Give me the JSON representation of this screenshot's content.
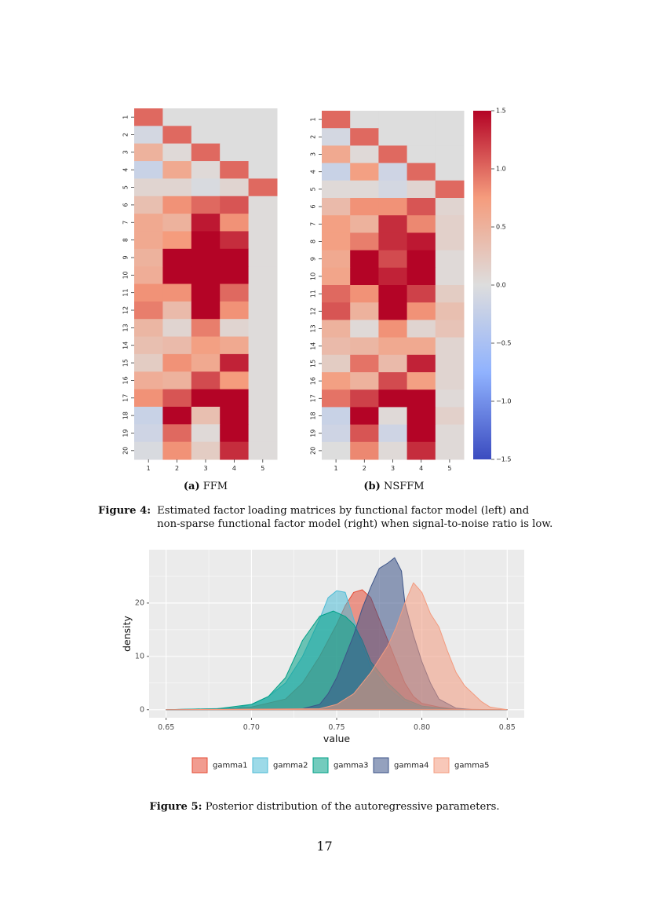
{
  "figure4": {
    "heatmaps": [
      {
        "label": "(a)",
        "title": "FFM",
        "rows": [
          "1",
          "2",
          "3",
          "4",
          "5",
          "6",
          "7",
          "8",
          "9",
          "10",
          "11",
          "12",
          "13",
          "14",
          "15",
          "16",
          "17",
          "18",
          "19",
          "20"
        ],
        "cols": [
          "1",
          "2",
          "3",
          "4",
          "5"
        ],
        "values": [
          [
            1.0,
            0,
            0,
            0,
            0
          ],
          [
            -0.1,
            1.0,
            0,
            0,
            0
          ],
          [
            0.5,
            0.05,
            1.0,
            0,
            0
          ],
          [
            -0.2,
            0.6,
            0.05,
            1.0,
            0
          ],
          [
            0.1,
            0.1,
            -0.05,
            0.1,
            1.0
          ],
          [
            0.35,
            0.8,
            1.0,
            1.1,
            0.02
          ],
          [
            0.6,
            0.5,
            1.4,
            0.8,
            0.02
          ],
          [
            0.6,
            0.75,
            1.5,
            1.3,
            0.02
          ],
          [
            0.5,
            1.5,
            1.5,
            1.5,
            0.02
          ],
          [
            0.55,
            1.5,
            1.5,
            1.5,
            0.02
          ],
          [
            0.8,
            0.8,
            1.5,
            1.0,
            0.02
          ],
          [
            0.9,
            0.4,
            1.5,
            0.8,
            0.02
          ],
          [
            0.45,
            0.1,
            0.9,
            0.1,
            0.02
          ],
          [
            0.35,
            0.4,
            0.7,
            0.6,
            0.02
          ],
          [
            0.2,
            0.8,
            0.6,
            1.35,
            0.02
          ],
          [
            0.55,
            0.5,
            1.15,
            0.75,
            0.02
          ],
          [
            0.8,
            1.1,
            1.5,
            1.5,
            0.02
          ],
          [
            -0.2,
            1.5,
            0.35,
            1.5,
            0.02
          ],
          [
            -0.15,
            1.0,
            0.05,
            1.5,
            0.02
          ],
          [
            -0.05,
            0.8,
            0.2,
            1.3,
            0.02
          ]
        ]
      },
      {
        "label": "(b)",
        "title": "NSFFM",
        "rows": [
          "1",
          "2",
          "3",
          "4",
          "5",
          "6",
          "7",
          "8",
          "9",
          "10",
          "11",
          "12",
          "13",
          "14",
          "15",
          "16",
          "17",
          "18",
          "19",
          "20"
        ],
        "cols": [
          "1",
          "2",
          "3",
          "4",
          "5"
        ],
        "values": [
          [
            1.0,
            0,
            0,
            0,
            0
          ],
          [
            -0.1,
            1.0,
            0,
            0,
            0
          ],
          [
            0.6,
            0.05,
            1.0,
            0,
            0
          ],
          [
            -0.2,
            0.7,
            -0.15,
            1.0,
            0
          ],
          [
            0.05,
            0.05,
            -0.1,
            0.1,
            1.0
          ],
          [
            0.4,
            0.8,
            0.8,
            1.1,
            0.1
          ],
          [
            0.7,
            0.5,
            1.3,
            0.85,
            0.15
          ],
          [
            0.7,
            0.9,
            1.3,
            1.4,
            0.15
          ],
          [
            0.6,
            1.5,
            1.15,
            1.5,
            0.05
          ],
          [
            0.65,
            1.5,
            1.35,
            1.5,
            0.05
          ],
          [
            1.0,
            0.8,
            1.5,
            1.2,
            0.2
          ],
          [
            1.1,
            0.5,
            1.5,
            0.8,
            0.35
          ],
          [
            0.5,
            0.05,
            0.8,
            0.1,
            0.3
          ],
          [
            0.4,
            0.45,
            0.6,
            0.6,
            0.1
          ],
          [
            0.2,
            0.95,
            0.4,
            1.35,
            0.1
          ],
          [
            0.7,
            0.5,
            1.15,
            0.7,
            0.1
          ],
          [
            0.95,
            1.2,
            1.5,
            1.5,
            0.05
          ],
          [
            -0.2,
            1.5,
            0.05,
            1.5,
            0.15
          ],
          [
            -0.15,
            1.1,
            -0.15,
            1.5,
            0.05
          ],
          [
            0,
            0.85,
            0.05,
            1.3,
            0.05
          ]
        ]
      }
    ],
    "colorbar": {
      "range": [
        -1.5,
        1.5
      ],
      "ticks": [
        "1.5",
        "1.0",
        "0.5",
        "0.0",
        "−0.5",
        "−1.0",
        "−1.5"
      ],
      "tick_values": [
        1.5,
        1.0,
        0.5,
        0.0,
        -0.5,
        -1.0,
        -1.5
      ]
    },
    "caption_label": "Figure 4:",
    "caption_text": "Estimated factor loading matrices by functional factor model (left) and non-sparse functional factor model (right) when signal-to-noise ratio is low."
  },
  "chart_data": {
    "type": "area",
    "xlabel": "value",
    "ylabel": "density",
    "xlim": [
      0.64,
      0.86
    ],
    "ylim": [
      -1.5,
      30
    ],
    "xticks": [
      0.65,
      0.7,
      0.75,
      0.8,
      0.85
    ],
    "xtick_labels": [
      "0.65",
      "0.70",
      "0.75",
      "0.80",
      "0.85"
    ],
    "yticks": [
      0,
      10,
      20
    ],
    "ytick_labels": [
      "0",
      "10",
      "20"
    ],
    "grid": true,
    "legend_position": "bottom",
    "series": [
      {
        "name": "gamma1",
        "color": "#E64B35",
        "points": [
          [
            0.65,
            0
          ],
          [
            0.68,
            0.2
          ],
          [
            0.7,
            0.5
          ],
          [
            0.72,
            2
          ],
          [
            0.73,
            5
          ],
          [
            0.74,
            10
          ],
          [
            0.75,
            16
          ],
          [
            0.755,
            19.5
          ],
          [
            0.76,
            22
          ],
          [
            0.765,
            22.5
          ],
          [
            0.77,
            21
          ],
          [
            0.775,
            17
          ],
          [
            0.78,
            13
          ],
          [
            0.785,
            9
          ],
          [
            0.79,
            5
          ],
          [
            0.795,
            2.5
          ],
          [
            0.8,
            1.2
          ],
          [
            0.81,
            0.5
          ],
          [
            0.82,
            0.1
          ],
          [
            0.85,
            0
          ]
        ]
      },
      {
        "name": "gamma2",
        "color": "#4DBBD5",
        "points": [
          [
            0.65,
            0
          ],
          [
            0.69,
            0.3
          ],
          [
            0.7,
            1
          ],
          [
            0.71,
            2.5
          ],
          [
            0.72,
            5
          ],
          [
            0.73,
            10
          ],
          [
            0.74,
            17
          ],
          [
            0.745,
            21
          ],
          [
            0.75,
            22.3
          ],
          [
            0.755,
            22
          ],
          [
            0.76,
            17
          ],
          [
            0.765,
            12
          ],
          [
            0.77,
            8
          ],
          [
            0.78,
            4
          ],
          [
            0.79,
            1.5
          ],
          [
            0.8,
            0.4
          ],
          [
            0.81,
            0
          ],
          [
            0.85,
            0
          ]
        ]
      },
      {
        "name": "gamma3",
        "color": "#00A087",
        "points": [
          [
            0.65,
            0
          ],
          [
            0.68,
            0.2
          ],
          [
            0.7,
            1
          ],
          [
            0.71,
            2.5
          ],
          [
            0.72,
            6
          ],
          [
            0.73,
            13
          ],
          [
            0.74,
            17.5
          ],
          [
            0.748,
            18.5
          ],
          [
            0.755,
            17.5
          ],
          [
            0.76,
            16
          ],
          [
            0.765,
            13
          ],
          [
            0.77,
            9
          ],
          [
            0.78,
            5
          ],
          [
            0.79,
            2
          ],
          [
            0.8,
            0.7
          ],
          [
            0.82,
            0
          ],
          [
            0.85,
            0
          ]
        ]
      },
      {
        "name": "gamma4",
        "color": "#3C5488",
        "points": [
          [
            0.65,
            0
          ],
          [
            0.73,
            0.2
          ],
          [
            0.74,
            1
          ],
          [
            0.745,
            3
          ],
          [
            0.75,
            6
          ],
          [
            0.755,
            10
          ],
          [
            0.76,
            14
          ],
          [
            0.765,
            19
          ],
          [
            0.77,
            23
          ],
          [
            0.775,
            26.5
          ],
          [
            0.78,
            27.5
          ],
          [
            0.784,
            28.5
          ],
          [
            0.788,
            26
          ],
          [
            0.79,
            20
          ],
          [
            0.795,
            14
          ],
          [
            0.8,
            9
          ],
          [
            0.805,
            5
          ],
          [
            0.81,
            2
          ],
          [
            0.82,
            0.3
          ],
          [
            0.83,
            0
          ],
          [
            0.85,
            0
          ]
        ]
      },
      {
        "name": "gamma5",
        "color": "#F39B7F",
        "points": [
          [
            0.65,
            0
          ],
          [
            0.74,
            0.2
          ],
          [
            0.75,
            1
          ],
          [
            0.76,
            3
          ],
          [
            0.77,
            7
          ],
          [
            0.78,
            12
          ],
          [
            0.785,
            15.5
          ],
          [
            0.79,
            20
          ],
          [
            0.795,
            23.8
          ],
          [
            0.8,
            22
          ],
          [
            0.805,
            18
          ],
          [
            0.81,
            15.5
          ],
          [
            0.815,
            11
          ],
          [
            0.82,
            7
          ],
          [
            0.825,
            4.5
          ],
          [
            0.83,
            3
          ],
          [
            0.835,
            1.5
          ],
          [
            0.84,
            0.5
          ],
          [
            0.85,
            0
          ]
        ]
      }
    ]
  },
  "figure5": {
    "caption_label": "Figure 5:",
    "caption_text": "Posterior distribution of the autoregressive parameters."
  },
  "page_number": "17"
}
